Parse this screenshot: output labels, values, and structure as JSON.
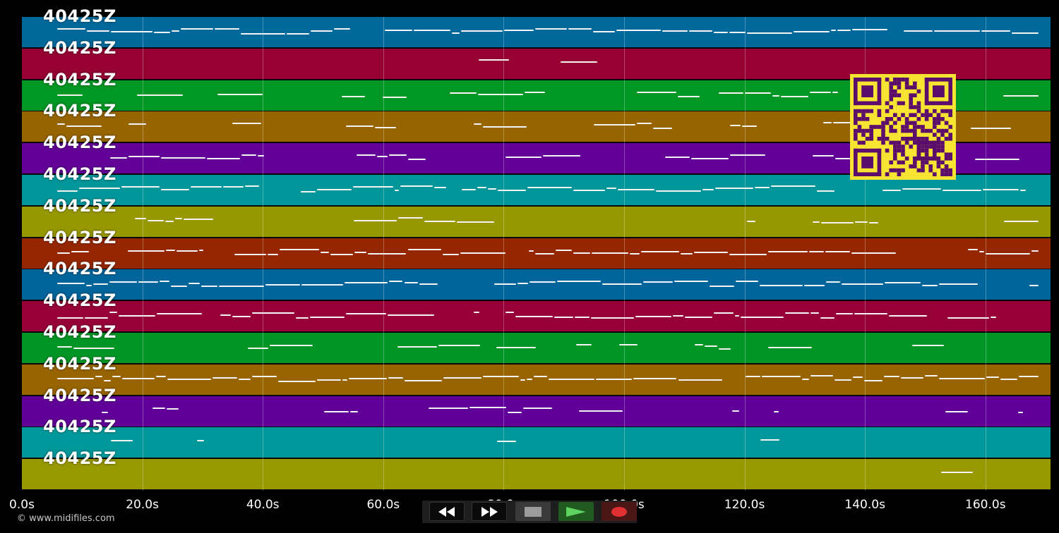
{
  "tracks": [
    {
      "label": "40425Z",
      "color": "#00699b"
    },
    {
      "label": "40425Z",
      "color": "#970033"
    },
    {
      "label": "40425Z",
      "color": "#009724"
    },
    {
      "label": "40425Z",
      "color": "#966500"
    },
    {
      "label": "40425Z",
      "color": "#620098"
    },
    {
      "label": "40425Z",
      "color": "#00969a"
    },
    {
      "label": "40425Z",
      "color": "#979800"
    },
    {
      "label": "40425Z",
      "color": "#952700"
    },
    {
      "label": "40425Z",
      "color": "#00659a"
    },
    {
      "label": "40425Z",
      "color": "#970036"
    },
    {
      "label": "40425Z",
      "color": "#019525"
    },
    {
      "label": "40425Z",
      "color": "#976400"
    },
    {
      "label": "40425Z",
      "color": "#610098"
    },
    {
      "label": "40425Z",
      "color": "#00989a"
    },
    {
      "label": "40425Z",
      "color": "#989800"
    }
  ],
  "timeline": {
    "ticks": [
      "0.0s",
      "20.0s",
      "40.0s",
      "60.0s",
      "80.0s",
      "100.0s",
      "120.0s",
      "140.0s",
      "160.0s"
    ]
  },
  "credit": "© www.midifiles.com",
  "transport": {
    "buttons": [
      {
        "name": "rewind-button",
        "icon": "rewind-icon"
      },
      {
        "name": "fast-forward-button",
        "icon": "fast-forward-icon"
      },
      {
        "name": "stop-button",
        "icon": "stop-icon"
      },
      {
        "name": "play-button",
        "icon": "play-icon"
      },
      {
        "name": "record-button",
        "icon": "record-icon"
      }
    ]
  },
  "qr_code": {
    "icon": "qr-code-icon",
    "background": "#f7e332",
    "foreground": "#5a0d6a"
  }
}
